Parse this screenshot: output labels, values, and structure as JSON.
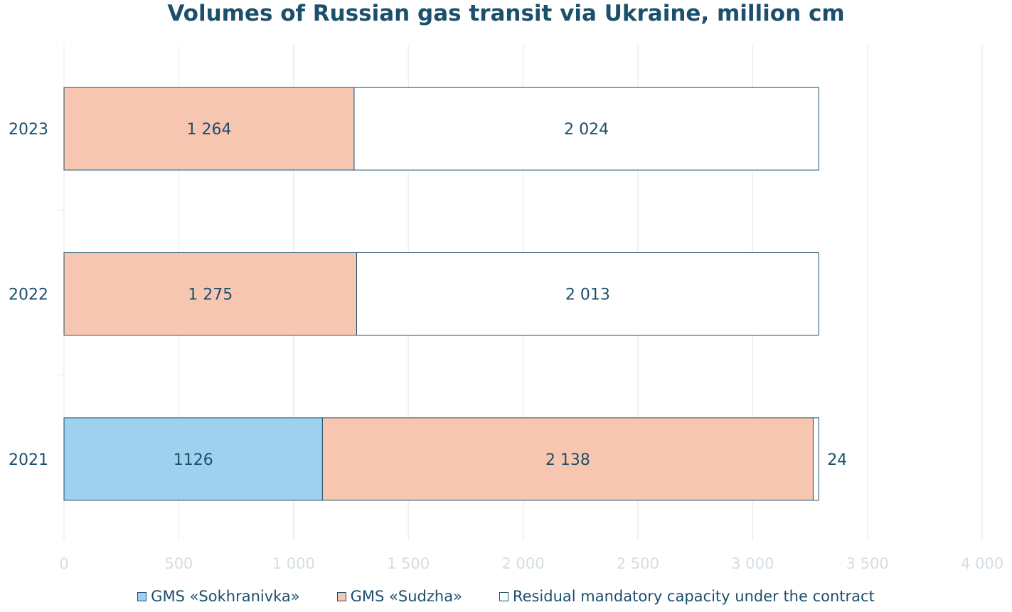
{
  "chart_data": {
    "type": "bar",
    "orientation": "horizontal",
    "stacked": true,
    "title": "Volumes of Russian gas transit via Ukraine, million cm",
    "categories": [
      "2021",
      "2022",
      "2023"
    ],
    "series": [
      {
        "name": "GMS «Sokhranivka»",
        "color": "#9fd1ee",
        "values": [
          1126,
          0,
          0
        ],
        "labels": [
          "1126",
          "",
          ""
        ]
      },
      {
        "name": "GMS «Sudzha»",
        "color": "#f7c6b0",
        "values": [
          2138,
          1275,
          1264
        ],
        "labels": [
          "2 138",
          "1 275",
          "1 264"
        ]
      },
      {
        "name": "Residual mandatory capacity under the contract",
        "color": "#ffffff",
        "values": [
          24,
          2013,
          2024
        ],
        "labels": [
          "24",
          "2 013",
          "2 024"
        ]
      }
    ],
    "xlim": [
      0,
      4000
    ],
    "xticks": [
      0,
      500,
      1000,
      1500,
      2000,
      2500,
      3000,
      3500,
      4000
    ],
    "xtick_labels": [
      "0",
      "500",
      "1 000",
      "1 500",
      "2 000",
      "2 500",
      "3 000",
      "3 500",
      "4 000"
    ],
    "grid": true,
    "legend_position": "bottom"
  }
}
